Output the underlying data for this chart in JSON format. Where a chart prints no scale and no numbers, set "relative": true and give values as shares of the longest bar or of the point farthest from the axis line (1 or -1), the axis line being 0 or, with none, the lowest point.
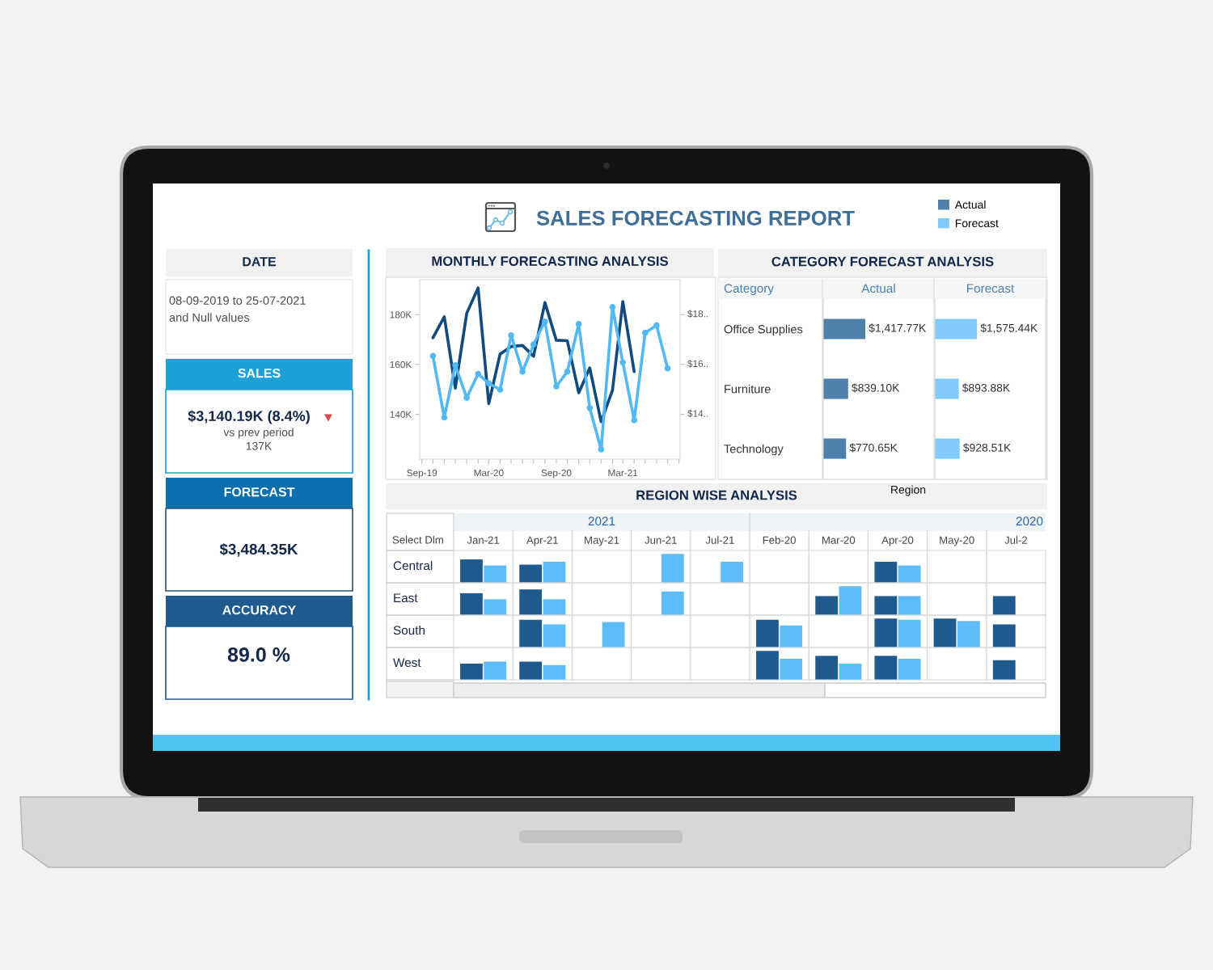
{
  "chart_data": [
    {
      "type": "other",
      "title": "SALES FORECASTING REPORT"
    },
    {
      "type": "other",
      "title": "DATE",
      "annotations": [
        "08-09-2019 to 25-07-2021",
        "and Null values"
      ]
    },
    {
      "type": "other",
      "title": "SALES",
      "annotations": [
        "$3,140.19K (8.4%)",
        "vs prev period",
        "137K"
      ]
    },
    {
      "type": "other",
      "title": "FORECAST",
      "annotations": [
        "$3,484.35K"
      ]
    },
    {
      "type": "other",
      "title": "ACCURACY",
      "annotations": [
        "89.0 %"
      ]
    },
    {
      "type": "line",
      "title": "MONTHLY FORECASTING ANALYSIS",
      "annotations": [
        "$14..",
        "$16..",
        "$18.."
      ],
      "x": [
        "2019-10",
        "2019-11",
        "2019-12",
        "2020-01",
        "2020-02",
        "2020-03",
        "2020-04",
        "2020-05",
        "2020-06",
        "2020-07",
        "2020-08",
        "2020-09",
        "2020-10",
        "2020-11",
        "2020-12",
        "2021-01",
        "2021-02",
        "2021-03",
        "2021-04",
        "2021-05",
        "2021-06",
        "2021-07"
      ],
      "series": [
        {
          "color": "#114a7e",
          "values": [
            170700,
            179100,
            150500,
            180500,
            190700,
            144300,
            164200,
            167200,
            167600,
            163300,
            184800,
            169700,
            169500,
            148600,
            158600,
            137000,
            149700,
            185200,
            157100,
            null,
            null,
            null
          ]
        },
        {
          "color": "#53b9f2",
          "marker": "circle",
          "values": [
            163400,
            138700,
            159700,
            146600,
            156200,
            152400,
            149900,
            171700,
            157100,
            168000,
            177200,
            151200,
            157100,
            176200,
            142500,
            125900,
            183000,
            160800,
            137600,
            172700,
            175700,
            158400
          ]
        }
      ],
      "xlim": [
        "2019-08-26",
        "2021-08-04"
      ],
      "xticks": [
        {
          "value": "2019-09",
          "label": "Sep-19"
        },
        {
          "value": "2019-10",
          "label": null
        },
        {
          "value": "2019-11",
          "label": null
        },
        {
          "value": "2019-12",
          "label": null
        },
        {
          "value": "2020-01",
          "label": null
        },
        {
          "value": "2020-02",
          "label": null
        },
        {
          "value": "2020-03",
          "label": "Mar-20"
        },
        {
          "value": "2020-04",
          "label": null
        },
        {
          "value": "2020-05",
          "label": null
        },
        {
          "value": "2020-06",
          "label": null
        },
        {
          "value": "2020-07",
          "label": null
        },
        {
          "value": "2020-08",
          "label": null
        },
        {
          "value": "2020-09",
          "label": "Sep-20"
        },
        {
          "value": "2020-10",
          "label": null
        },
        {
          "value": "2020-11",
          "label": null
        },
        {
          "value": "2020-12",
          "label": null
        },
        {
          "value": "2021-01",
          "label": null
        },
        {
          "value": "2021-02",
          "label": null
        },
        {
          "value": "2021-03",
          "label": "Mar-21"
        },
        {
          "value": "2021-04",
          "label": null
        },
        {
          "value": "2021-05",
          "label": null
        },
        {
          "value": "2021-06",
          "label": null
        },
        {
          "value": "2021-07",
          "label": null
        },
        {
          "value": "2021-08",
          "label": null
        }
      ],
      "ylim": [
        122000,
        194000
      ],
      "yticks": [
        {
          "value": 140000,
          "label": "140K"
        },
        {
          "value": 160000,
          "label": "160K"
        },
        {
          "value": 180000,
          "label": "180K"
        }
      ]
    },
    {
      "type": "bar",
      "title": "CATEGORY FORECAST ANALYSIS",
      "orientation": "horizontal",
      "ylabel": "Category",
      "tick_labels": "y",
      "legend": "top right",
      "categories": [
        "Office Supplies",
        "Furniture",
        "Technology"
      ],
      "series": [
        {
          "name": "Actual",
          "color": "#4e80aa",
          "values": [
            1417.77,
            839.1,
            770.65
          ],
          "value_labels": [
            "$1,417.77K",
            "$839.10K",
            "$770.65K"
          ]
        }
      ]
    },
    {
      "type": "bar",
      "orientation": "horizontal",
      "legend": "top right",
      "categories": [
        null,
        null,
        null
      ],
      "series": [
        {
          "name": "Forecast",
          "color": "#80cbfa",
          "values": [
            1575.44,
            893.88,
            928.51
          ],
          "value_labels": [
            "$1,575.44K",
            "$893.88K",
            "$928.51K"
          ]
        }
      ]
    },
    {
      "type": "bar",
      "title": "REGION WISE ANALYSIS",
      "subtitle": "Region",
      "annotations": [
        "Select Dlm",
        "2021",
        "2020"
      ],
      "ylabel": "Central",
      "relative": true,
      "tick_labels": "x",
      "categories": [
        "Jan-21",
        "Apr-21",
        "May-21",
        "Jun-21",
        "Jul-21",
        "Feb-20",
        "Mar-20",
        "Apr-20",
        "May-20",
        "Jul-2"
      ],
      "series": [
        {
          "color": "#1f5a8e",
          "values": [
            0.81,
            0.63,
            null,
            null,
            null,
            null,
            null,
            0.73,
            null,
            null
          ]
        },
        {
          "color": "#5cbdf8",
          "values": [
            0.6,
            0.73,
            null,
            1.0,
            0.73,
            null,
            null,
            0.6,
            null,
            null
          ]
        }
      ]
    },
    {
      "type": "bar",
      "ylabel": "East",
      "relative": true,
      "categories": [
        null,
        null,
        null,
        null,
        null,
        null,
        null,
        null,
        null,
        null
      ],
      "series": [
        {
          "color": "#1f5a8e",
          "values": [
            0.76,
            0.89,
            null,
            null,
            null,
            null,
            0.66,
            0.66,
            null,
            0.66
          ]
        },
        {
          "color": "#5cbdf8",
          "values": [
            0.55,
            0.55,
            null,
            0.82,
            null,
            null,
            1.0,
            0.66,
            null,
            null
          ]
        }
      ]
    },
    {
      "type": "bar",
      "ylabel": "South",
      "relative": true,
      "categories": [
        null,
        null,
        null,
        null,
        null,
        null,
        null,
        null,
        null,
        null
      ],
      "series": [
        {
          "color": "#1f5a8e",
          "values": [
            null,
            0.96,
            null,
            null,
            null,
            0.96,
            null,
            1.0,
            1.0,
            0.8
          ]
        },
        {
          "color": "#5cbdf8",
          "values": [
            null,
            0.8,
            0.88,
            null,
            null,
            0.76,
            null,
            0.96,
            0.92,
            null
          ]
        }
      ]
    },
    {
      "type": "bar",
      "ylabel": "West",
      "relative": true,
      "categories": [
        null,
        null,
        null,
        null,
        null,
        null,
        null,
        null,
        null,
        null
      ],
      "series": [
        {
          "color": "#1f5a8e",
          "values": [
            0.56,
            0.63,
            null,
            null,
            null,
            1.0,
            0.83,
            0.83,
            null,
            0.68
          ]
        },
        {
          "color": "#5cbdf8",
          "values": [
            0.63,
            0.51,
            null,
            null,
            null,
            0.73,
            0.56,
            0.73,
            null,
            null
          ]
        }
      ]
    }
  ]
}
